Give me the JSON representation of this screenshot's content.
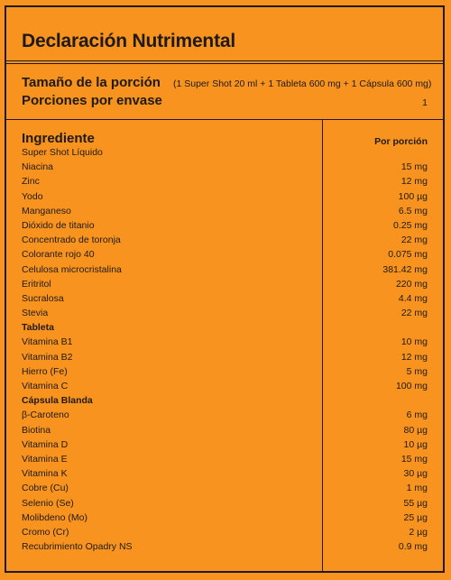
{
  "title": "Declaración Nutrimental",
  "serving": {
    "label": "Tamaño de la porción",
    "detail": "(1 Super Shot 20 ml + 1 Tableta 600 mg + 1 Cápsula 600 mg)"
  },
  "portions": {
    "label": "Porciones por envase",
    "value": "1"
  },
  "table": {
    "col_ingredient": "Ingrediente",
    "col_amount": "Por porción",
    "rows": [
      {
        "name": "Super Shot Líquido",
        "amount": "",
        "section": false
      },
      {
        "name": "Niacina",
        "amount": "15 mg",
        "section": false
      },
      {
        "name": "Zinc",
        "amount": "12 mg",
        "section": false
      },
      {
        "name": "Yodo",
        "amount": "100 µg",
        "section": false
      },
      {
        "name": "Manganeso",
        "amount": "6.5 mg",
        "section": false
      },
      {
        "name": "Dióxido de titanio",
        "amount": "0.25 mg",
        "section": false
      },
      {
        "name": "Concentrado de toronja",
        "amount": "22 mg",
        "section": false
      },
      {
        "name": "Colorante rojo 40",
        "amount": "0.075 mg",
        "section": false
      },
      {
        "name": "Celulosa microcristalina",
        "amount": "381.42 mg",
        "section": false
      },
      {
        "name": "Eritritol",
        "amount": "220 mg",
        "section": false
      },
      {
        "name": "Sucralosa",
        "amount": "4.4 mg",
        "section": false
      },
      {
        "name": "Stevia",
        "amount": "22  mg",
        "section": false
      },
      {
        "name": "Tableta",
        "amount": "",
        "section": true
      },
      {
        "name": "Vitamina B1",
        "amount": "10 mg",
        "section": false
      },
      {
        "name": "Vitamina B2",
        "amount": "12 mg",
        "section": false
      },
      {
        "name": "Hierro (Fe)",
        "amount": "5 mg",
        "section": false
      },
      {
        "name": "Vitamina C",
        "amount": "100 mg",
        "section": false
      },
      {
        "name": "Cápsula Blanda",
        "amount": "",
        "section": true
      },
      {
        "name": "β-Caroteno",
        "amount": "6 mg",
        "section": false
      },
      {
        "name": "Biotina",
        "amount": "80 µg",
        "section": false
      },
      {
        "name": "Vitamina D",
        "amount": "10 µg",
        "section": false
      },
      {
        "name": "Vitamina E",
        "amount": "15 mg",
        "section": false
      },
      {
        "name": "Vitamina K",
        "amount": "30 µg",
        "section": false
      },
      {
        "name": "Cobre (Cu)",
        "amount": "1 mg",
        "section": false
      },
      {
        "name": "Selenio (Se)",
        "amount": "55 µg",
        "section": false
      },
      {
        "name": "Molibdeno (Mo)",
        "amount": "25 µg",
        "section": false
      },
      {
        "name": "Cromo (Cr)",
        "amount": "2 µg",
        "section": false
      },
      {
        "name": "Recubrimiento Opadry NS",
        "amount": "0.9 mg",
        "section": false
      }
    ]
  },
  "colors": {
    "background": "#f7931e",
    "ink": "#1f1a17"
  }
}
